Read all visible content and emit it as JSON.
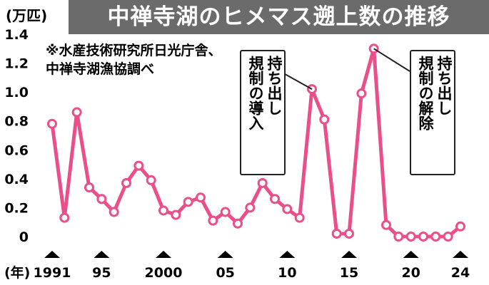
{
  "title": "中禅寺湖のヒメマス遡上数の推移",
  "source_note": "※水産技術研究所日光庁舎、中禅寺湖漁協調べ",
  "colors": {
    "line": "#ea4f8a",
    "title_bg": "#6b6b6b",
    "title_text": "#ffffff"
  },
  "chart_data": {
    "type": "line",
    "title": "中禅寺湖のヒメマス遡上数の推移",
    "ylabel": "(万匹)",
    "xlabel": "(年)",
    "ylim": [
      0,
      1.4
    ],
    "yticks": [
      0,
      0.2,
      0.4,
      0.6,
      0.8,
      1.0,
      1.2,
      1.4
    ],
    "ytick_labels": [
      "0",
      "0.2",
      "0.4",
      "0.6",
      "0.8",
      "1.0",
      "1.2",
      "1.4"
    ],
    "xlim": [
      1991,
      2024
    ],
    "xtick_positions": [
      1991,
      1995,
      2000,
      2005,
      2010,
      2015,
      2020,
      2024
    ],
    "xtick_labels": [
      "1991",
      "95",
      "2000",
      "05",
      "10",
      "15",
      "20",
      "24"
    ],
    "grid": false,
    "legend": "none",
    "marker": "circle",
    "series": [
      {
        "x": [
          1991,
          1992,
          1993,
          1994,
          1995,
          1996,
          1997,
          1998,
          1999,
          2000,
          2001,
          2002,
          2003,
          2004,
          2005,
          2006,
          2007,
          2008,
          2009,
          2010,
          2011,
          2012,
          2013,
          2014,
          2015,
          2016,
          2017,
          2018,
          2019,
          2020,
          2021,
          2022,
          2023,
          2024
        ],
        "y": [
          0.78,
          0.13,
          0.86,
          0.34,
          0.26,
          0.17,
          0.37,
          0.49,
          0.39,
          0.18,
          0.15,
          0.24,
          0.27,
          0.11,
          0.17,
          0.09,
          0.2,
          0.37,
          0.26,
          0.19,
          0.13,
          1.02,
          0.81,
          0.02,
          0.02,
          0.99,
          1.3,
          0.08,
          0.0,
          0.0,
          0.0,
          0.0,
          0.0,
          0.07
        ]
      }
    ],
    "annotations": [
      {
        "text": [
          "持ち出し",
          "規制の導入"
        ],
        "x": 2012
      },
      {
        "text": [
          "持ち出し",
          "規制の解除"
        ],
        "x": 2017
      }
    ]
  }
}
